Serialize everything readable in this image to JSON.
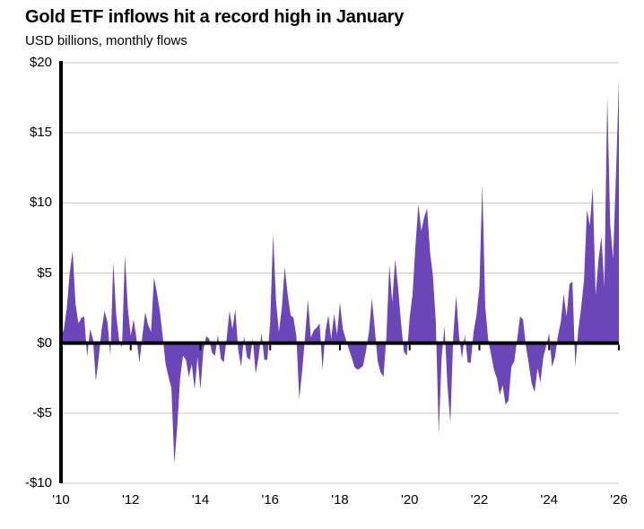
{
  "header": {
    "title": "Gold ETF inflows hit a record high in January",
    "subtitle": "USD billions, monthly flows"
  },
  "chart_data": {
    "type": "area",
    "title": "Gold ETF inflows hit a record high in January",
    "subtitle": "USD billions, monthly flows",
    "unit": "USD billions",
    "frequency": "monthly",
    "x_start": "2010-01",
    "x_end": "2026-01",
    "legend": false,
    "grid": true,
    "ylim": [
      -10,
      20
    ],
    "colors": {
      "fill": "#6a46b8",
      "axis": "#000000",
      "grid": "#c9c9c9",
      "text": "#000000"
    },
    "y_axis": {
      "ticks": [
        {
          "value": 20,
          "label": "$20"
        },
        {
          "value": 15,
          "label": "$15"
        },
        {
          "value": 10,
          "label": "$10"
        },
        {
          "value": 5,
          "label": "$5"
        },
        {
          "value": 0,
          "label": "$0"
        },
        {
          "value": -5,
          "label": "-$5"
        },
        {
          "value": -10,
          "label": "-$10"
        }
      ]
    },
    "x_axis": {
      "ticks": [
        {
          "year": 2010,
          "label": "'10"
        },
        {
          "year": 2012,
          "label": "'12"
        },
        {
          "year": 2014,
          "label": "'14"
        },
        {
          "year": 2016,
          "label": "'16"
        },
        {
          "year": 2018,
          "label": "'18"
        },
        {
          "year": 2020,
          "label": "'20"
        },
        {
          "year": 2022,
          "label": "'22"
        },
        {
          "year": 2024,
          "label": "'24"
        },
        {
          "year": 2026,
          "label": "'26"
        }
      ]
    },
    "series": [
      {
        "name": "Gold ETF monthly flows",
        "values": [
          0.4,
          1.0,
          2.5,
          5.0,
          6.6,
          2.8,
          1.4,
          1.8,
          1.9,
          -1.0,
          1.0,
          0.3,
          -2.7,
          -1.0,
          1.0,
          2.3,
          1.5,
          -0.9,
          5.8,
          2.0,
          0.2,
          -0.3,
          6.3,
          2.5,
          0.5,
          1.7,
          0.3,
          -1.4,
          0.5,
          2.2,
          1.3,
          0.8,
          4.7,
          3.6,
          2.3,
          0.5,
          -1.5,
          -2.4,
          -3.2,
          -8.6,
          -6.0,
          -2.5,
          -0.9,
          -1.2,
          -2.4,
          -1.5,
          -3.3,
          -1.0,
          -3.3,
          -0.5,
          0.5,
          0.3,
          -0.7,
          -0.9,
          0.6,
          -1.1,
          -1.4,
          0.3,
          2.3,
          1.0,
          2.4,
          -0.5,
          -1.7,
          0.5,
          -1.0,
          -1.2,
          0.3,
          -2.2,
          -1.0,
          0.7,
          -1.2,
          -1.2,
          1.5,
          7.8,
          3.0,
          0.8,
          2.5,
          5.4,
          3.5,
          2.0,
          1.8,
          0.5,
          -4.0,
          -2.0,
          0.5,
          3.1,
          0.4,
          0.9,
          1.1,
          1.4,
          -1.9,
          0.8,
          2.0,
          0.3,
          2.1,
          0.6,
          2.9,
          1.0,
          0.3,
          -0.4,
          -1.0,
          -1.7,
          -1.9,
          -1.8,
          -1.6,
          -0.5,
          0.8,
          3.2,
          1.0,
          -1.3,
          -2.1,
          -2.4,
          0.5,
          5.6,
          2.9,
          6.0,
          4.0,
          1.5,
          -0.6,
          -0.9,
          1.8,
          3.5,
          7.0,
          9.9,
          8.0,
          9.0,
          9.6,
          6.5,
          4.8,
          1.5,
          -6.5,
          -1.0,
          1.2,
          -3.0,
          -5.7,
          0.5,
          3.4,
          0.5,
          -1.1,
          0.6,
          -1.4,
          -1.4,
          0.8,
          2.0,
          4.0,
          11.4,
          2.6,
          0.3,
          -0.8,
          -1.9,
          -2.5,
          -3.7,
          -3.0,
          -4.4,
          -4.1,
          -1.7,
          -1.3,
          0.3,
          1.9,
          1.7,
          -0.2,
          -1.5,
          -2.9,
          -3.5,
          -1.8,
          -2.8,
          -1.0,
          -0.2,
          0.7,
          -1.7,
          -1.0,
          0.5,
          1.5,
          3.5,
          1.9,
          4.2,
          4.4,
          -1.7,
          0.9,
          2.5,
          4.5,
          9.5,
          8.4,
          11.1,
          3.4,
          6.0,
          7.6,
          4.0,
          17.6,
          8.5,
          6.0,
          12.0,
          18.7
        ]
      }
    ]
  }
}
